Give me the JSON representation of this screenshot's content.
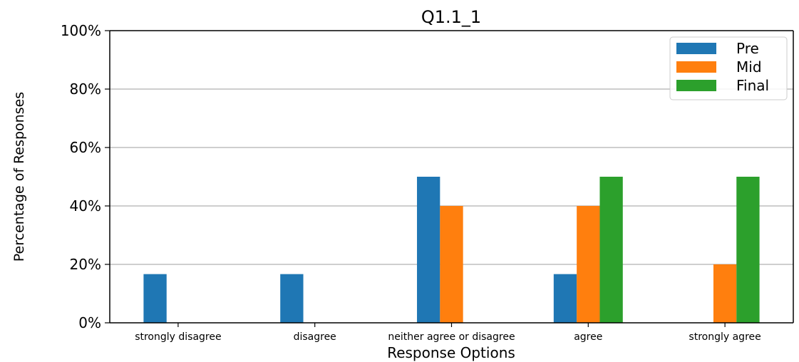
{
  "chart_data": {
    "type": "bar",
    "title": "Q1.1_1",
    "xlabel": "Response Options",
    "ylabel": "Percentage of Responses",
    "categories": [
      "strongly disagree",
      "disagree",
      "neither agree or disagree",
      "agree",
      "strongly agree"
    ],
    "series": [
      {
        "name": "Pre",
        "values": [
          16.67,
          16.67,
          50,
          16.67,
          0
        ],
        "color": "#1f77b4"
      },
      {
        "name": "Mid",
        "values": [
          0,
          0,
          40,
          40,
          20
        ],
        "color": "#ff7f0e"
      },
      {
        "name": "Final",
        "values": [
          0,
          0,
          0,
          50,
          50
        ],
        "color": "#2ca02c"
      }
    ],
    "ylim": [
      0,
      100
    ],
    "yticks": [
      {
        "value": 0,
        "label": "0%"
      },
      {
        "value": 20,
        "label": "20%"
      },
      {
        "value": 40,
        "label": "40%"
      },
      {
        "value": 60,
        "label": "60%"
      },
      {
        "value": 80,
        "label": "80%"
      },
      {
        "value": 100,
        "label": "100%"
      }
    ],
    "grid": "y",
    "legend_position": "top-right"
  }
}
